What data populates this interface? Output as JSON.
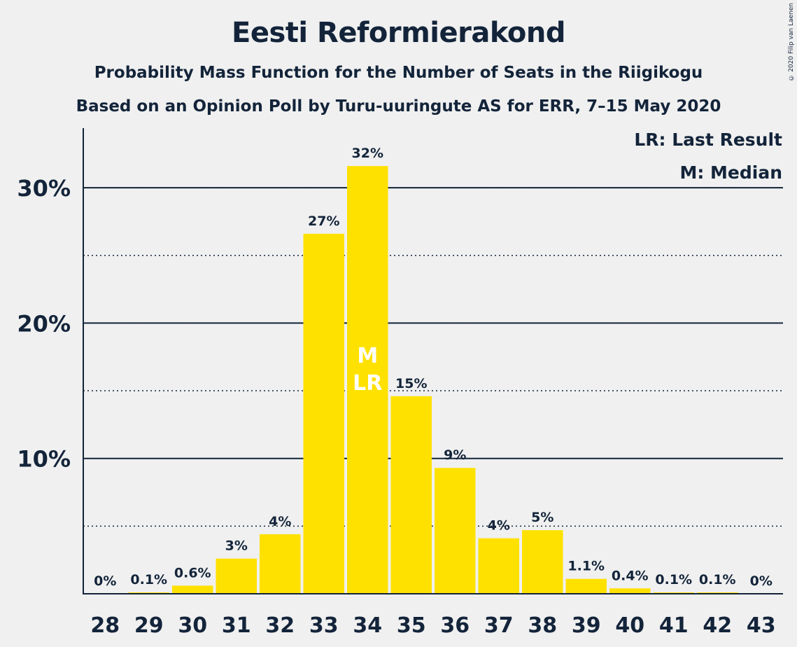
{
  "header": {
    "title": "Eesti Reformierakond",
    "subtitle1": "Probability Mass Function for the Number of Seats in the Riigikogu",
    "subtitle2": "Based on an Opinion Poll by Turu-uuringute AS for ERR, 7–15 May 2020",
    "copyright": "© 2020 Filip van Laenen"
  },
  "legend": {
    "last_result": "LR: Last Result",
    "median": "M: Median"
  },
  "colors": {
    "bar": "#ffe100",
    "text": "#13243a",
    "background": "#f0f0f0"
  },
  "chart_data": {
    "type": "bar",
    "categories": [
      "28",
      "29",
      "30",
      "31",
      "32",
      "33",
      "34",
      "35",
      "36",
      "37",
      "38",
      "39",
      "40",
      "41",
      "42",
      "43"
    ],
    "values": [
      0,
      0.1,
      0.6,
      2.6,
      4.4,
      26.6,
      31.6,
      14.6,
      9.3,
      4.1,
      4.7,
      1.1,
      0.4,
      0.1,
      0.1,
      0
    ],
    "data_labels": [
      "0%",
      "0.1%",
      "0.6%",
      "3%",
      "4%",
      "27%",
      "32%",
      "15%",
      "9%",
      "4%",
      "5%",
      "1.1%",
      "0.4%",
      "0.1%",
      "0.1%",
      "0%"
    ],
    "ylim": [
      0,
      34
    ],
    "y_ticks_major": [
      10,
      20,
      30
    ],
    "y_tick_labels": [
      "10%",
      "20%",
      "30%"
    ],
    "y_ticks_minor": [
      5,
      15,
      25
    ],
    "markers": {
      "category": "34",
      "median": "M",
      "last_result": "LR"
    },
    "xlabel": "",
    "ylabel": ""
  }
}
